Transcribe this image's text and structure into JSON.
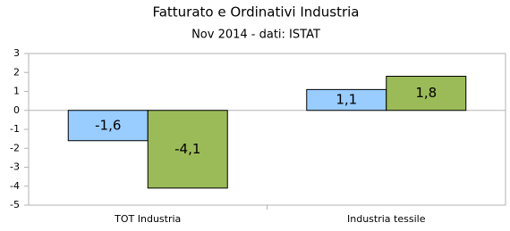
{
  "chart_data": {
    "type": "bar",
    "title": "Fatturato e Ordinativi Industria",
    "subtitle": "Nov 2014 - dati: ISTAT",
    "categories": [
      "TOT Industria",
      "Industria tessile"
    ],
    "series": [
      {
        "color": "#99ccff",
        "values": [
          -1.6,
          1.1
        ],
        "value_labels": [
          "-1,6",
          "1,1"
        ]
      },
      {
        "color": "#9bbb59",
        "values": [
          -4.1,
          1.8
        ],
        "value_labels": [
          "-4,1",
          "1,8"
        ]
      }
    ],
    "ylim": [
      -5,
      3
    ],
    "yticks": [
      -5,
      -4,
      -3,
      -2,
      -1,
      0,
      1,
      2,
      3
    ],
    "grid": false
  }
}
